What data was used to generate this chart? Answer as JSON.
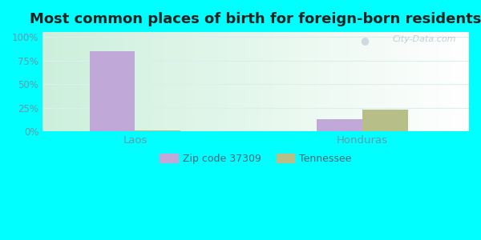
{
  "title": "Most common places of birth for foreign-born residents",
  "categories": [
    "Laos",
    "Honduras"
  ],
  "series": {
    "Zip code 37309": [
      85,
      13
    ],
    "Tennessee": [
      1,
      23
    ]
  },
  "colors": {
    "Zip code 37309": "#c0a8d8",
    "Tennessee": "#b8be88"
  },
  "yticks": [
    0,
    25,
    50,
    75,
    100
  ],
  "ytick_labels": [
    "0%",
    "25%",
    "50%",
    "75%",
    "100%"
  ],
  "ylim": [
    0,
    105
  ],
  "bar_width": 0.32,
  "group_positions": [
    0.5,
    2.1
  ],
  "xlim": [
    -0.15,
    2.85
  ],
  "outer_bg": "#00ffff",
  "plot_bg": "#f0faf0",
  "title_fontsize": 13,
  "axis_label_color": "#6699aa",
  "legend_label_color": "#446677",
  "watermark": "City-Data.com",
  "grid_color": "#ddeeee",
  "figsize": [
    6.0,
    3.0
  ],
  "dpi": 100
}
